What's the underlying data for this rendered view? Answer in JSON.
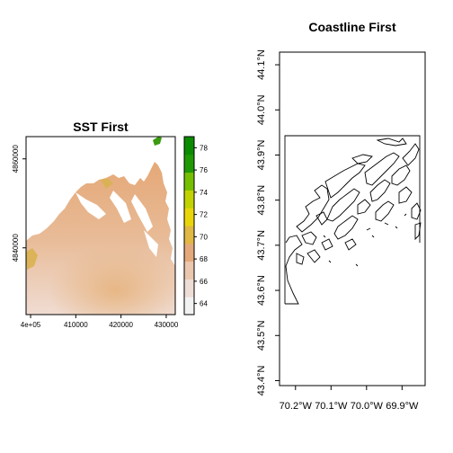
{
  "chart_data": [
    {
      "type": "heatmap",
      "title": "SST First",
      "xlabel": "",
      "ylabel": "",
      "x_tick_labels": [
        "4e+05",
        "410000",
        "420000",
        "430000"
      ],
      "x_ticks": [
        400000,
        410000,
        420000,
        430000
      ],
      "y_tick_labels": [
        "4840000",
        "4860000"
      ],
      "y_ticks": [
        4840000,
        4860000
      ],
      "xlim": [
        399000,
        432000
      ],
      "ylim": [
        4825000,
        4865000
      ],
      "colorbar": {
        "tick_labels": [
          "64",
          "66",
          "68",
          "70",
          "72",
          "74",
          "76",
          "78"
        ],
        "ticks": [
          64,
          66,
          68,
          70,
          72,
          74,
          76,
          78
        ],
        "range": [
          63,
          79
        ],
        "colors": [
          "#f2f2f2",
          "#eeddd6",
          "#eac7ad",
          "#e4a97a",
          "#e0b843",
          "#e8d60a",
          "#c2d200",
          "#76bf00",
          "#1f9a05",
          "#0b8c00"
        ]
      }
    },
    {
      "type": "map",
      "title": "Coastline First",
      "xlabel": "",
      "ylabel": "",
      "x_tick_labels": [
        "70.2°W",
        "70.1°W",
        "70.0°W",
        "69.9°W"
      ],
      "x_ticks": [
        -70.2,
        -70.1,
        -70.0,
        -69.9
      ],
      "y_tick_labels": [
        "43.4°N",
        "43.5°N",
        "43.6°N",
        "43.7°N",
        "43.8°N",
        "43.9°N",
        "44.0°N",
        "44.1°N"
      ],
      "y_ticks": [
        43.4,
        43.5,
        43.6,
        43.7,
        43.8,
        43.9,
        44.0,
        44.1
      ],
      "xlim": [
        -70.245,
        -69.835
      ],
      "ylim": [
        43.389,
        44.128
      ]
    }
  ]
}
